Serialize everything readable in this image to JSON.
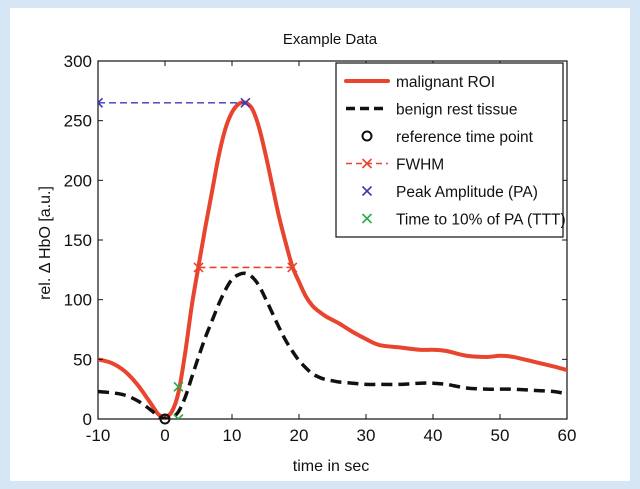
{
  "chart_data": {
    "type": "line",
    "title": "Example Data",
    "xlabel": "time in sec",
    "ylabel": "rel. Δ HbO [a.u.]",
    "xlim": [
      -10,
      60
    ],
    "ylim": [
      0,
      300
    ],
    "xticks": [
      -10,
      0,
      10,
      20,
      30,
      40,
      50,
      60
    ],
    "yticks": [
      0,
      50,
      100,
      150,
      200,
      250,
      300
    ],
    "grid": false,
    "legend_position": "top-right",
    "series": [
      {
        "name": "malignant ROI",
        "color": "#e8442e",
        "style": "solid",
        "x": [
          -10,
          -8,
          -6,
          -4,
          -2,
          -1,
          0,
          1,
          2,
          3,
          4,
          5,
          6,
          7,
          8,
          9,
          10,
          11,
          12,
          13,
          14,
          15,
          16,
          17,
          18,
          19,
          20,
          21,
          22,
          23,
          24,
          25,
          26,
          28,
          30,
          32,
          35,
          38,
          40,
          42,
          45,
          48,
          50,
          52,
          55,
          58,
          60
        ],
        "y": [
          50,
          47,
          40,
          28,
          12,
          4,
          2,
          6,
          22,
          55,
          95,
          128,
          160,
          190,
          220,
          243,
          257,
          264,
          265,
          260,
          245,
          222,
          196,
          170,
          148,
          128,
          115,
          103,
          95,
          90,
          86,
          83,
          80,
          73,
          67,
          62,
          60,
          58,
          58,
          57,
          53,
          52,
          53,
          52,
          48,
          44,
          41
        ]
      },
      {
        "name": "benign rest tissue",
        "color": "#111111",
        "style": "dashed",
        "x": [
          -10,
          -8,
          -6,
          -4,
          -2,
          -1,
          0,
          1,
          2,
          3,
          4,
          5,
          6,
          7,
          8,
          9,
          10,
          11,
          12,
          13,
          14,
          15,
          16,
          17,
          18,
          19,
          20,
          21,
          22,
          23,
          24,
          25,
          26,
          28,
          30,
          32,
          35,
          38,
          40,
          42,
          45,
          48,
          50,
          52,
          55,
          58,
          60
        ],
        "y": [
          23,
          22,
          20,
          15,
          7,
          2,
          0,
          1,
          6,
          18,
          35,
          52,
          68,
          82,
          96,
          108,
          117,
          121,
          122,
          119,
          112,
          101,
          89,
          77,
          66,
          57,
          49,
          43,
          38,
          35,
          33,
          32,
          31,
          30,
          29,
          29,
          29,
          30,
          30,
          29,
          26,
          25,
          25,
          25,
          24,
          23,
          21
        ]
      }
    ],
    "markers": {
      "reference_time_point": {
        "name": "reference time point",
        "x": 0,
        "y": 0,
        "symbol": "circle",
        "color": "#111111"
      },
      "fwhm": {
        "name": "FWHM",
        "x": [
          5,
          19
        ],
        "y": 127,
        "color": "#e8442e",
        "symbol": "x",
        "line": "dashed"
      },
      "peak_amplitude": {
        "name": "Peak Amplitude (PA)",
        "x": 12,
        "y": 265,
        "color": "#3b3bb0",
        "symbol": "x",
        "reference_line_from_x": -10
      },
      "time_to_10pct": {
        "name": "Time to 10% of PA (TTT)",
        "points": [
          {
            "x": 2,
            "y": 27
          },
          {
            "x": 2,
            "y": 0
          }
        ],
        "color": "#2aa84a",
        "symbol": "x"
      }
    },
    "legend": [
      {
        "label": "malignant ROI",
        "kind": "line-solid",
        "color": "#e8442e"
      },
      {
        "label": "benign rest tissue",
        "kind": "line-dashed",
        "color": "#111111"
      },
      {
        "label": "reference time point",
        "kind": "circle",
        "color": "#111111"
      },
      {
        "label": "FWHM",
        "kind": "dashed-x",
        "color": "#e8442e"
      },
      {
        "label": "Peak Amplitude (PA)",
        "kind": "x",
        "color": "#3b3bb0"
      },
      {
        "label": "Time to 10% of PA (TTT)",
        "kind": "x",
        "color": "#2aa84a"
      }
    ]
  }
}
